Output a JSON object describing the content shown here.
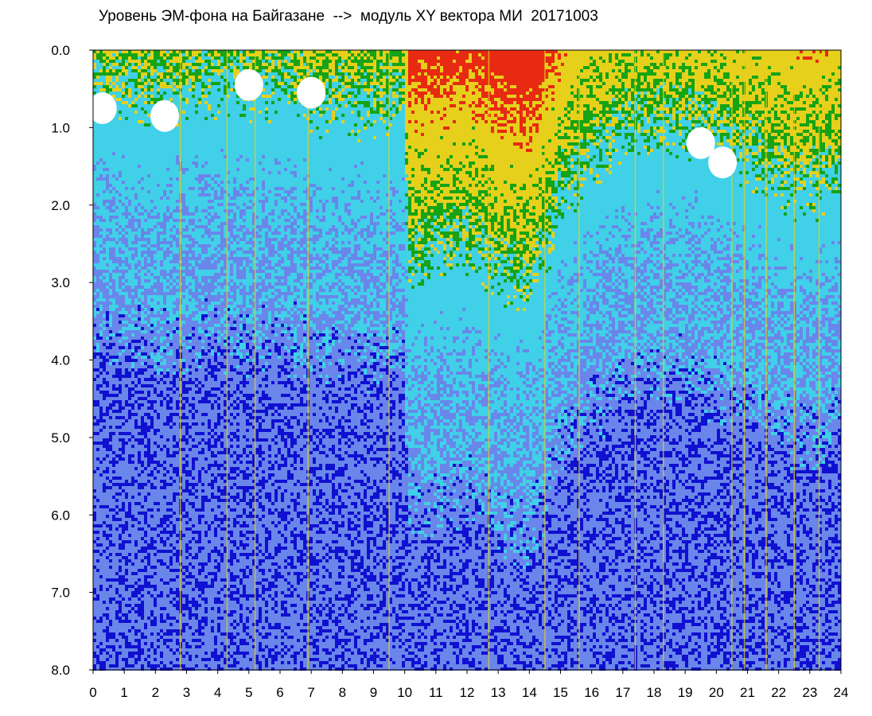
{
  "chart_data": {
    "type": "heatmap",
    "title": "Уровень ЭМ-фона на Байгазане  -->  модуль XY вектора МИ  20171003",
    "x_ticks": [
      "0",
      "1",
      "2",
      "3",
      "4",
      "5",
      "6",
      "7",
      "8",
      "9",
      "10",
      "11",
      "12",
      "13",
      "14",
      "15",
      "16",
      "17",
      "18",
      "19",
      "20",
      "21",
      "22",
      "23",
      "24"
    ],
    "y_ticks": [
      "0.0",
      "1.0",
      "2.0",
      "3.0",
      "4.0",
      "5.0",
      "6.0",
      "7.0",
      "8.0"
    ],
    "xlim": [
      0,
      24
    ],
    "ylim": [
      0,
      8
    ],
    "y_inverted": true,
    "color_scale": [
      "#1010d0",
      "#6a86ea",
      "#40d0e8",
      "#16a316",
      "#e6d01c",
      "#e82a12",
      "#ffffff"
    ],
    "background_color": "#6f8de8",
    "column_intensity": [
      {
        "x": 0.0,
        "level": 1.0
      },
      {
        "x": 1.0,
        "level": 1.1
      },
      {
        "x": 2.0,
        "level": 1.15
      },
      {
        "x": 3.0,
        "level": 1.0
      },
      {
        "x": 4.0,
        "level": 1.0
      },
      {
        "x": 5.0,
        "level": 1.1
      },
      {
        "x": 6.0,
        "level": 1.0
      },
      {
        "x": 7.0,
        "level": 1.25
      },
      {
        "x": 8.0,
        "level": 1.2
      },
      {
        "x": 9.0,
        "level": 1.25
      },
      {
        "x": 9.95,
        "level": 1.3
      },
      {
        "x": 10.05,
        "level": 3.2
      },
      {
        "x": 11.0,
        "level": 3.2
      },
      {
        "x": 12.0,
        "level": 3.0
      },
      {
        "x": 13.0,
        "level": 3.4
      },
      {
        "x": 14.0,
        "level": 3.6
      },
      {
        "x": 15.0,
        "level": 2.4
      },
      {
        "x": 16.0,
        "level": 1.9
      },
      {
        "x": 17.0,
        "level": 1.6
      },
      {
        "x": 18.0,
        "level": 1.5
      },
      {
        "x": 19.0,
        "level": 1.5
      },
      {
        "x": 20.0,
        "level": 1.7
      },
      {
        "x": 21.0,
        "level": 1.9
      },
      {
        "x": 22.0,
        "level": 2.2
      },
      {
        "x": 23.0,
        "level": 2.3
      },
      {
        "x": 24.0,
        "level": 2.1
      }
    ],
    "saturated_patches": [
      {
        "x": 0.3,
        "y": 0.75
      },
      {
        "x": 2.3,
        "y": 0.85
      },
      {
        "x": 5.0,
        "y": 0.45
      },
      {
        "x": 7.0,
        "y": 0.55
      },
      {
        "x": 19.5,
        "y": 1.2
      },
      {
        "x": 20.2,
        "y": 1.45
      }
    ],
    "vertical_streaks": [
      2.8,
      4.3,
      5.2,
      6.9,
      9.5,
      12.7,
      14.5,
      15.6,
      17.4,
      18.3,
      20.5,
      20.9,
      21.6,
      22.5,
      23.3
    ]
  }
}
